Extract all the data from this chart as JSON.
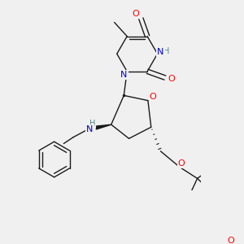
{
  "background_color": "#f0f0f0",
  "figsize": [
    3.0,
    3.0
  ],
  "dpi": 100,
  "bond_color": "#1a1a1a",
  "atom_colors": {
    "O": "#ff0000",
    "N": "#0000cc",
    "H": "#558888",
    "C": "#1a1a1a"
  }
}
